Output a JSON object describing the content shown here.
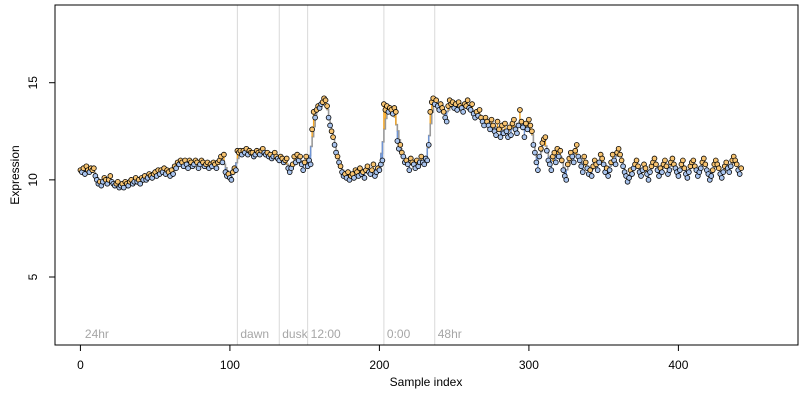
{
  "chart_data": {
    "type": "scatter",
    "title": "",
    "xlabel": "Sample index",
    "ylabel": "Expression",
    "xlim": [
      -17,
      480
    ],
    "ylim": [
      1.5,
      19
    ],
    "x_ticks": [
      0,
      100,
      200,
      300,
      400
    ],
    "y_ticks": [
      5,
      10,
      15
    ],
    "phase_lines": [
      {
        "x": 105,
        "label": "dawn"
      },
      {
        "x": 133,
        "label": "dusk"
      },
      {
        "x": 152,
        "label": "12:00"
      },
      {
        "x": 203,
        "label": "0:00"
      },
      {
        "x": 237,
        "label": "48hr"
      }
    ],
    "region_label": {
      "x": 3,
      "label": "24hr"
    },
    "series": [
      {
        "role": "observed",
        "style": "open circles, colored fill: orange when above the fitted line, light blue when below"
      },
      {
        "role": "fitted",
        "style": "grey step line"
      }
    ],
    "colors": {
      "fitted_line": "#999999",
      "above_residual": "#f5a623",
      "below_residual": "#6f95d6",
      "phase_line": "#d9d9d9",
      "phase_label": "#a6a6a6",
      "point_above_fill": "#f8c471",
      "point_below_fill": "#a9c4ee"
    },
    "observed_y": [
      10.5,
      10.4,
      10.6,
      10.3,
      10.7,
      10.5,
      10.4,
      10.6,
      10.5,
      10.6,
      10.2,
      10.0,
      9.8,
      9.9,
      9.7,
      9.9,
      10.1,
      10.0,
      9.8,
      10.0,
      10.2,
      9.9,
      9.8,
      9.7,
      9.8,
      9.9,
      9.6,
      9.7,
      9.8,
      9.6,
      9.9,
      9.8,
      9.7,
      9.9,
      10.0,
      9.8,
      9.9,
      10.1,
      9.9,
      10.0,
      9.8,
      10.1,
      10.0,
      10.2,
      10.0,
      10.1,
      10.3,
      10.2,
      10.1,
      10.3,
      10.4,
      10.2,
      10.5,
      10.3,
      10.5,
      10.4,
      10.6,
      10.3,
      10.5,
      10.4,
      10.2,
      10.5,
      10.3,
      10.7,
      10.6,
      10.9,
      10.8,
      11.0,
      10.9,
      10.7,
      11.0,
      10.8,
      10.6,
      11.0,
      10.9,
      10.7,
      10.8,
      11.0,
      10.9,
      10.6,
      10.8,
      11.0,
      10.9,
      10.7,
      10.8,
      10.9,
      10.6,
      10.8,
      10.7,
      10.9,
      10.8,
      10.6,
      10.9,
      11.0,
      11.2,
      10.9,
      11.3,
      10.4,
      10.2,
      10.3,
      10.1,
      10.0,
      10.4,
      10.6,
      10.5,
      11.5,
      11.4,
      11.5,
      11.3,
      11.5,
      11.4,
      11.6,
      11.3,
      11.5,
      11.4,
      11.4,
      11.2,
      11.3,
      11.5,
      11.4,
      11.3,
      11.5,
      11.6,
      11.4,
      11.3,
      11.4,
      11.2,
      11.3,
      11.1,
      11.2,
      11.4,
      11.2,
      11.1,
      11.0,
      11.2,
      11.1,
      10.9,
      11.0,
      11.1,
      10.6,
      10.4,
      10.6,
      10.8,
      11.2,
      10.9,
      11.3,
      11.0,
      11.2,
      10.8,
      10.5,
      10.9,
      11.2,
      10.7,
      11.0,
      10.8,
      12.6,
      13.5,
      13.2,
      13.6,
      13.8,
      13.7,
      13.9,
      14.0,
      14.2,
      14.1,
      13.8,
      13.2,
      12.8,
      12.5,
      12.2,
      11.8,
      11.4,
      11.2,
      10.9,
      10.7,
      10.4,
      10.2,
      10.3,
      10.1,
      10.4,
      10.0,
      10.2,
      10.3,
      10.1,
      10.5,
      10.4,
      10.2,
      10.6,
      10.3,
      10.4,
      10.1,
      10.5,
      10.7,
      10.4,
      10.3,
      10.5,
      10.8,
      10.2,
      10.4,
      10.6,
      10.5,
      10.8,
      11.0,
      13.9,
      13.6,
      13.8,
      13.5,
      13.7,
      13.6,
      13.4,
      13.7,
      13.5,
      12.0,
      11.6,
      11.8,
      11.4,
      11.2,
      10.9,
      11.0,
      10.8,
      10.5,
      11.1,
      10.9,
      10.8,
      10.6,
      11.0,
      10.7,
      10.9,
      11.2,
      10.9,
      10.8,
      11.1,
      11.0,
      11.8,
      13.5,
      14.0,
      14.2,
      13.9,
      14.1,
      13.8,
      13.6,
      13.9,
      13.7,
      13.5,
      13.2,
      13.0,
      13.8,
      14.1,
      13.9,
      14.0,
      13.7,
      13.9,
      13.6,
      14.0,
      13.8,
      13.7,
      13.5,
      13.9,
      13.8,
      14.1,
      13.7,
      13.6,
      13.9,
      13.4,
      13.2,
      13.5,
      13.3,
      13.6,
      13.2,
      13.0,
      12.8,
      13.2,
      13.0,
      12.8,
      12.6,
      13.1,
      12.8,
      12.5,
      12.3,
      13.0,
      12.6,
      12.2,
      12.8,
      12.4,
      12.9,
      12.5,
      12.2,
      12.7,
      12.3,
      12.9,
      13.1,
      12.6,
      12.4,
      12.8,
      13.6,
      13.0,
      12.7,
      12.2,
      12.9,
      12.6,
      13.1,
      12.8,
      12.5,
      11.8,
      11.4,
      10.9,
      10.5,
      11.2,
      11.6,
      11.9,
      12.1,
      12.2,
      11.5,
      11.0,
      10.8,
      10.5,
      11.2,
      11.4,
      10.9,
      11.6,
      11.2,
      11.5,
      11.0,
      10.5,
      10.2,
      10.0,
      10.8,
      11.1,
      11.4,
      11.2,
      10.9,
      11.5,
      11.8,
      11.2,
      11.0,
      10.7,
      10.4,
      11.2,
      10.9,
      10.6,
      10.3,
      10.5,
      10.2,
      10.7,
      11.0,
      10.8,
      10.5,
      10.9,
      11.3,
      11.1,
      10.8,
      10.4,
      10.6,
      10.2,
      10.5,
      10.9,
      11.3,
      11.0,
      10.8,
      11.4,
      11.6,
      11.3,
      11.0,
      10.7,
      10.4,
      10.2,
      9.9,
      10.1,
      10.5,
      10.3,
      10.6,
      10.8,
      11.0,
      10.7,
      10.4,
      10.2,
      10.5,
      10.8,
      10.6,
      10.3,
      10.0,
      10.4,
      10.7,
      10.9,
      11.1,
      10.8,
      10.5,
      10.2,
      10.6,
      10.4,
      10.8,
      11.0,
      10.7,
      10.3,
      10.5,
      10.9,
      11.1,
      10.8,
      10.6,
      10.4,
      10.2,
      10.5,
      10.8,
      11.0,
      10.6,
      10.3,
      10.1,
      10.4,
      10.7,
      10.9,
      11.0,
      10.7,
      10.5,
      10.2,
      10.4,
      10.6,
      10.9,
      11.1,
      10.8,
      10.5,
      10.3,
      10.0,
      10.2,
      10.5,
      10.8,
      11.0,
      10.8,
      10.6,
      10.3,
      10.1,
      10.4,
      10.7,
      10.9,
      10.6,
      10.4,
      10.7,
      11.0,
      11.2,
      11.0,
      10.8,
      10.5,
      10.3,
      10.6
    ]
  }
}
